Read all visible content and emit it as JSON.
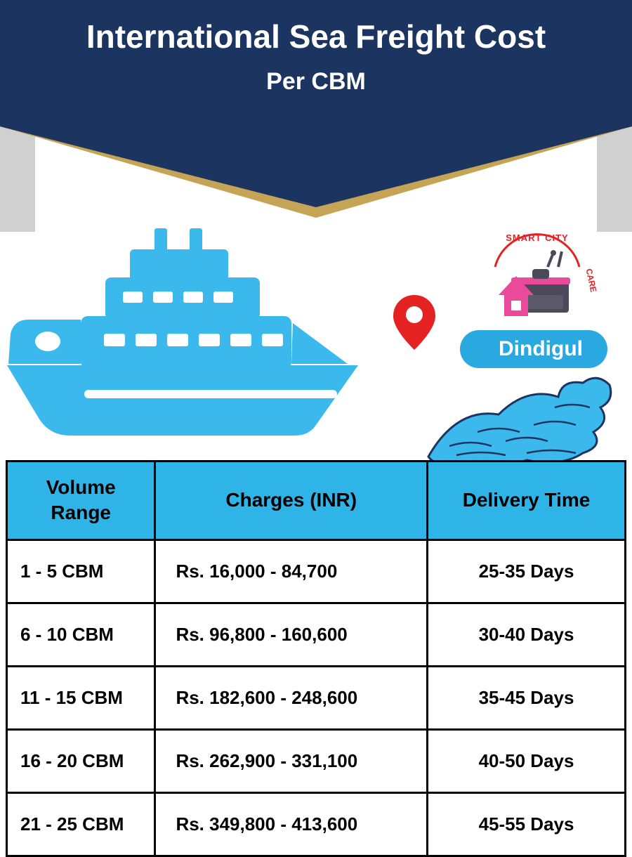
{
  "header": {
    "title": "International Sea Freight Cost",
    "subtitle": "Per CBM",
    "navy_color": "#1c3460",
    "gold_color": "#c5a456",
    "gray_color": "#d0d0d0",
    "text_color": "#ffffff",
    "title_fontsize": 46,
    "subtitle_fontsize": 34
  },
  "location": {
    "name": "Dindigul",
    "badge_bg": "#2aa8e0",
    "badge_text_color": "#ffffff",
    "pin_color": "#e52222"
  },
  "logo": {
    "text_top": "SMART CITY",
    "text_side": "CARE",
    "arc_color": "#e52222",
    "house_color": "#e94b9a",
    "toolbox_color": "#4a4a5a"
  },
  "ship": {
    "color": "#3bb8ec",
    "wave_outline": "#1c3460",
    "wave_fill": "#3bb8ec"
  },
  "table": {
    "header_bg": "#2fb4e8",
    "border_color": "#000000",
    "text_color": "#000000",
    "header_fontsize": 28,
    "cell_fontsize": 26,
    "columns": [
      "Volume Range",
      "Charges (INR)",
      "Delivery Time"
    ],
    "rows": [
      {
        "volume": "1 - 5 CBM",
        "charges": "Rs. 16,000 - 84,700",
        "delivery": "25-35 Days"
      },
      {
        "volume": "6 - 10 CBM",
        "charges": "Rs. 96,800 - 160,600",
        "delivery": "30-40 Days"
      },
      {
        "volume": "11 - 15 CBM",
        "charges": "Rs. 182,600 - 248,600",
        "delivery": "35-45 Days"
      },
      {
        "volume": "16 - 20 CBM",
        "charges": "Rs. 262,900 - 331,100",
        "delivery": "40-50 Days"
      },
      {
        "volume": "21 - 25 CBM",
        "charges": "Rs. 349,800 - 413,600",
        "delivery": "45-55 Days"
      }
    ]
  }
}
